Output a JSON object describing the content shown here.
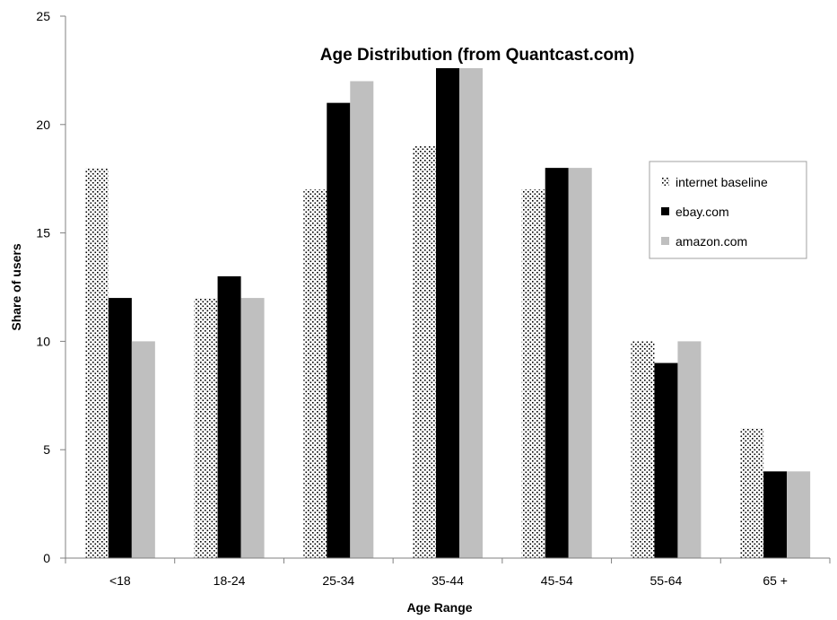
{
  "chart_data": {
    "type": "bar",
    "title": "Age Distribution (from Quantcast.com)",
    "xlabel": "Age Range",
    "ylabel": "Share of users",
    "ylim": [
      0,
      25
    ],
    "yticks": [
      0,
      5,
      10,
      15,
      20,
      25
    ],
    "grid": false,
    "legend": "right",
    "categories": [
      "<18",
      "18-24",
      "25-34",
      "35-44",
      "45-54",
      "55-64",
      "65 +"
    ],
    "series": [
      {
        "name": "internet baseline",
        "values": [
          18,
          12,
          17,
          19,
          17,
          10,
          6
        ],
        "fill": "dotted"
      },
      {
        "name": "ebay.com",
        "values": [
          12,
          13,
          21,
          22.6,
          18,
          9,
          4
        ],
        "color": "#000000"
      },
      {
        "name": "amazon.com",
        "values": [
          10,
          12,
          22,
          22.6,
          18,
          10,
          4
        ],
        "color": "#bfbfbf"
      }
    ]
  }
}
